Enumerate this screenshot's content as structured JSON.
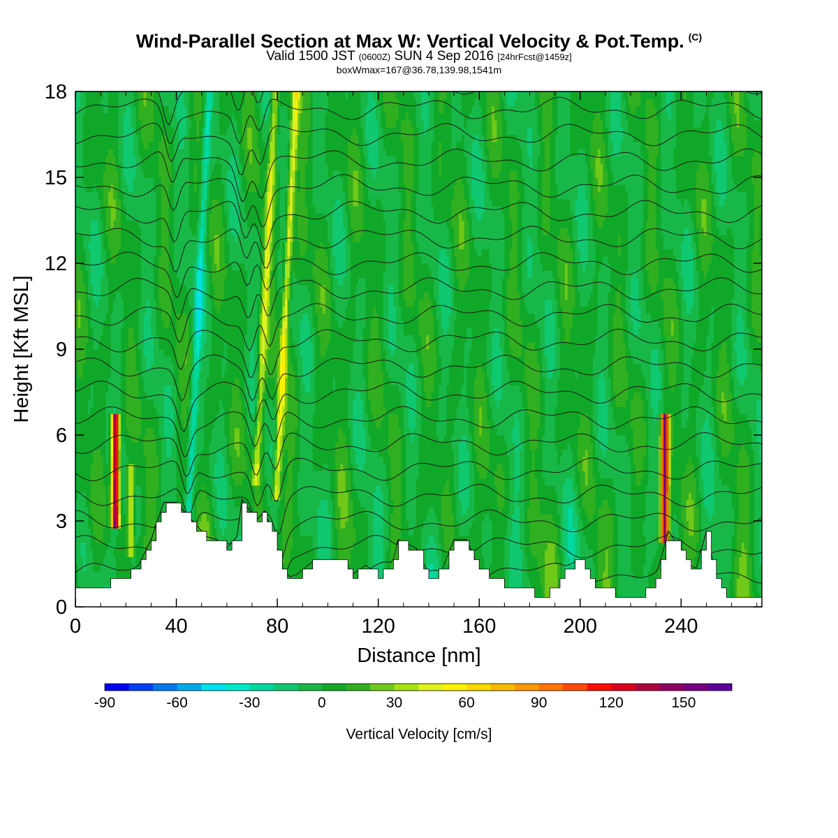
{
  "header": {
    "title": "Wind-Parallel Section at Max W: Vertical Velocity & Pot.Temp.",
    "copyright": "(C)",
    "valid_prefix": "Valid 1500 JST",
    "valid_utc": "(0600Z)",
    "valid_date": "SUN 4 Sep 2016",
    "forecast": "[24hrFcst@1459z]",
    "boxwmax": "boxWmax=167@36.78,139.98,1541m"
  },
  "chart_data": {
    "type": "heatmap",
    "xlabel": "Distance [nm]",
    "ylabel": "Height [Kft MSL]",
    "xlim": [
      0,
      272
    ],
    "ylim": [
      0,
      18
    ],
    "x_ticks": [
      0,
      40,
      80,
      120,
      160,
      200,
      240
    ],
    "y_ticks": [
      0,
      3,
      6,
      9,
      12,
      15,
      18
    ],
    "colorbar": {
      "label": "Vertical Velocity [cm/s]",
      "ticks": [
        -90,
        -60,
        -30,
        0,
        30,
        60,
        90,
        120,
        150
      ],
      "levels": [
        -90,
        -80,
        -70,
        -60,
        -50,
        -40,
        -30,
        -20,
        -10,
        0,
        10,
        20,
        30,
        40,
        50,
        60,
        70,
        80,
        90,
        100,
        110,
        120,
        130,
        140,
        150,
        160,
        170
      ],
      "colors": [
        "#0000ee",
        "#0040f0",
        "#0078f0",
        "#00a8f0",
        "#00e0f0",
        "#00e8c8",
        "#00d8a0",
        "#10c870",
        "#18b848",
        "#10a828",
        "#30b020",
        "#70c818",
        "#a8e018",
        "#e0f020",
        "#fff200",
        "#ffd800",
        "#ffb800",
        "#ff9800",
        "#ff7400",
        "#ff4c00",
        "#f81000",
        "#d80020",
        "#b00040",
        "#900060",
        "#780080",
        "#5c00a0"
      ]
    },
    "vertical_velocity_field": {
      "background_cm_s": 0,
      "updraft_cores": [
        {
          "x": 15.8,
          "y_range": [
            3.5,
            6.2
          ],
          "w": 160
        },
        {
          "x": 22,
          "y_range": [
            2.5,
            4.5
          ],
          "w": 40
        },
        {
          "x": 45,
          "y_range": [
            3.5,
            17.5
          ],
          "w": -30
        },
        {
          "x": 72,
          "y_range": [
            5,
            18
          ],
          "w": 40
        },
        {
          "x": 80,
          "y_range": [
            4.5,
            18
          ],
          "w": 50
        },
        {
          "x": 233.5,
          "y_range": [
            3,
            6.3
          ],
          "w": 150
        }
      ]
    },
    "terrain_height_kft": {
      "x": [
        0,
        10,
        18,
        25,
        30,
        35,
        40,
        46,
        52,
        56,
        60,
        64,
        66,
        70,
        72,
        75,
        79,
        82,
        85,
        88,
        95,
        100,
        105,
        110,
        115,
        120,
        125,
        128,
        135,
        140,
        145,
        150,
        155,
        160,
        165,
        170,
        175,
        180,
        185,
        190,
        195,
        200,
        205,
        210,
        215,
        220,
        225,
        230,
        235,
        240,
        245,
        250,
        255,
        260,
        265,
        272
      ],
      "h": [
        0.7,
        0.7,
        1.0,
        1.4,
        2.3,
        3.6,
        3.6,
        3.0,
        2.4,
        2.3,
        2.0,
        2.4,
        3.7,
        3.2,
        3.0,
        3.3,
        2.3,
        1.3,
        1.0,
        1.1,
        1.6,
        1.6,
        1.6,
        1.1,
        1.4,
        1.1,
        1.3,
        2.3,
        2.0,
        1.1,
        1.2,
        2.3,
        2.3,
        1.3,
        1.0,
        0.8,
        0.8,
        0.5,
        0.4,
        0.6,
        1.4,
        1.6,
        0.7,
        0.7,
        0.4,
        0.3,
        0.4,
        1.0,
        2.6,
        1.9,
        1.0,
        2.6,
        0.6,
        0.3,
        0.3,
        0.3
      ]
    },
    "isentropes_count": 20,
    "annotations": []
  }
}
